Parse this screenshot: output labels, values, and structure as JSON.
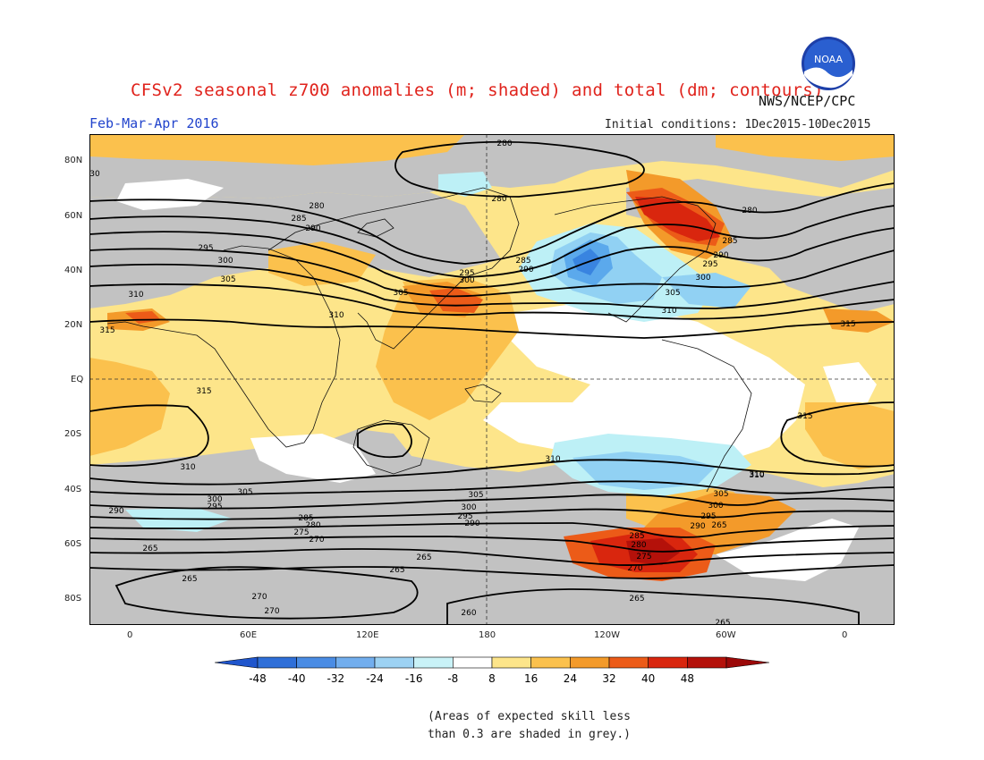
{
  "header": {
    "title": "CFSv2 seasonal z700 anomalies (m; shaded) and total (dm; contours)",
    "agency": "NWS/NCEP/CPC",
    "season": "Feb-Mar-Apr 2016",
    "initial_conditions": "Initial conditions: 1Dec2015-10Dec2015",
    "logo_text": "NOAA"
  },
  "map": {
    "lon_labels": [
      "0",
      "60E",
      "120E",
      "180",
      "120W",
      "60W",
      "0"
    ],
    "lat_labels": [
      "80N",
      "60N",
      "40N",
      "20N",
      "EQ",
      "20S",
      "40S",
      "60S",
      "80S"
    ],
    "contour_labels": [
      "280",
      "280",
      "280",
      "285",
      "290",
      "295",
      "300",
      "305",
      "310",
      "285",
      "290",
      "295",
      "300",
      "305",
      "310",
      "280",
      "285",
      "290",
      "295",
      "300",
      "305",
      "310",
      "315",
      "315",
      "315",
      "315",
      "310",
      "310",
      "310",
      "305",
      "300",
      "295",
      "290",
      "285",
      "280",
      "275",
      "270",
      "265",
      "265",
      "265",
      "265",
      "270",
      "270",
      "260",
      "265",
      "305",
      "300",
      "295",
      "290",
      "285",
      "280",
      "275",
      "270",
      "265",
      "290",
      "295",
      "300",
      "305",
      "310",
      "265",
      "30"
    ],
    "colors": {
      "grey": "#c2c2c2",
      "pos1": "#fde58a",
      "pos2": "#fbc14d",
      "pos3": "#f39a2a",
      "pos4": "#ec5b18",
      "pos5": "#d9260e",
      "pos6": "#b4110a",
      "neg1": "#bdf0f6",
      "neg2": "#91d1f3",
      "neg3": "#5ba9ec",
      "neg4": "#3984e0",
      "neg5": "#1f62d2"
    }
  },
  "colorbar": {
    "ticks": [
      "-48",
      "-40",
      "-32",
      "-24",
      "-16",
      "-8",
      "8",
      "16",
      "24",
      "32",
      "40",
      "48"
    ],
    "colors": [
      "#1f55cc",
      "#2f6fd8",
      "#4a8ce4",
      "#72aeee",
      "#9dd2f3",
      "#c9f2f7",
      "#ffffff",
      "#fde58a",
      "#fbc14d",
      "#f39a2a",
      "#ec5b18",
      "#d9260e",
      "#b4110a",
      "#9b0808"
    ]
  },
  "note": {
    "line1": "(Areas of expected skill less",
    "line2": "than 0.3 are shaded in grey.)"
  }
}
